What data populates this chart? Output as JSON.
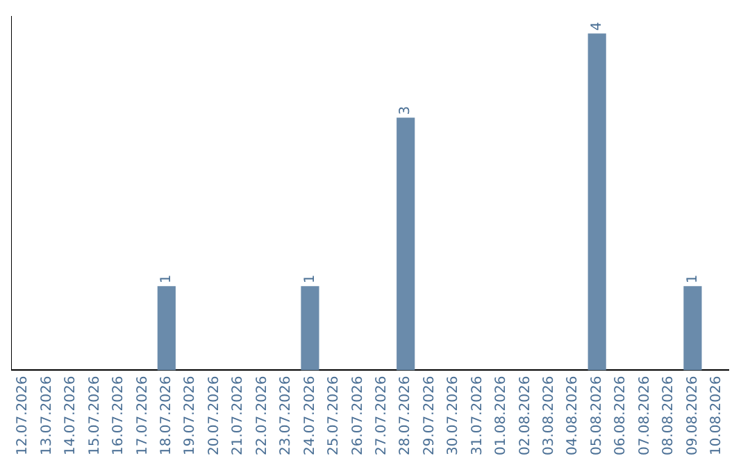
{
  "chart_data": {
    "type": "bar",
    "categories": [
      "12.07.2026",
      "13.07.2026",
      "14.07.2026",
      "15.07.2026",
      "16.07.2026",
      "17.07.2026",
      "18.07.2026",
      "19.07.2026",
      "20.07.2026",
      "21.07.2026",
      "22.07.2026",
      "23.07.2026",
      "24.07.2026",
      "25.07.2026",
      "26.07.2026",
      "27.07.2026",
      "28.07.2026",
      "29.07.2026",
      "30.07.2026",
      "31.07.2026",
      "01.08.2026",
      "02.08.2026",
      "03.08.2026",
      "04.08.2026",
      "05.08.2026",
      "06.08.2026",
      "07.08.2026",
      "08.08.2026",
      "09.08.2026",
      "10.08.2026"
    ],
    "values": [
      0,
      0,
      0,
      0,
      0,
      0,
      1,
      0,
      0,
      0,
      0,
      0,
      1,
      0,
      0,
      0,
      3,
      0,
      0,
      0,
      0,
      0,
      0,
      0,
      4,
      0,
      0,
      0,
      1,
      0
    ],
    "value_labels": [
      null,
      null,
      null,
      null,
      null,
      null,
      "1",
      null,
      null,
      null,
      null,
      null,
      "1",
      null,
      null,
      null,
      "3",
      null,
      null,
      null,
      null,
      null,
      null,
      null,
      "4",
      null,
      null,
      null,
      "1",
      null
    ],
    "color": "#6a8bab",
    "ylim": [
      0,
      4.2
    ],
    "tick_labels": "x",
    "grid": false,
    "legend": false
  }
}
